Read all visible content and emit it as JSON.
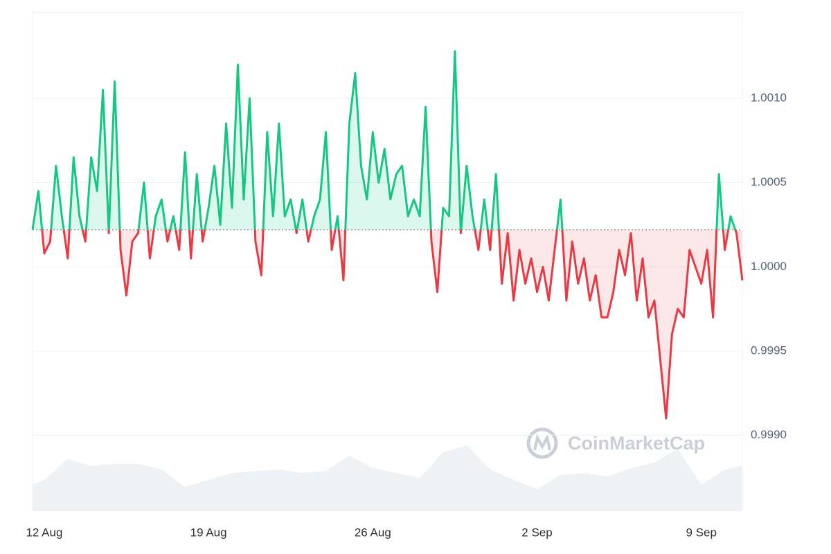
{
  "chart_data": {
    "type": "line",
    "watermark": "CoinMarketCap",
    "baseline": 1.00022,
    "up_color": "#16c784",
    "down_color": "#ea3943",
    "x": [
      -0.5,
      -0.25,
      0,
      0.25,
      0.5,
      0.75,
      1,
      1.25,
      1.5,
      1.75,
      2,
      2.25,
      2.5,
      2.75,
      3,
      3.25,
      3.5,
      3.75,
      4,
      4.25,
      4.5,
      4.75,
      5,
      5.25,
      5.5,
      5.75,
      6,
      6.25,
      6.5,
      6.75,
      7,
      7.25,
      7.5,
      7.75,
      8,
      8.25,
      8.5,
      8.75,
      9,
      9.25,
      9.5,
      9.75,
      10,
      10.25,
      10.5,
      10.75,
      11,
      11.25,
      11.5,
      11.75,
      12,
      12.25,
      12.5,
      12.75,
      13,
      13.25,
      13.5,
      13.75,
      14,
      14.25,
      14.5,
      14.75,
      15,
      15.25,
      15.5,
      15.75,
      16,
      16.25,
      16.5,
      16.75,
      17,
      17.25,
      17.5,
      17.75,
      18,
      18.25,
      18.5,
      18.75,
      19,
      19.25,
      19.5,
      19.75,
      20,
      20.25,
      20.5,
      20.75,
      21,
      21.25,
      21.5,
      21.75,
      22,
      22.25,
      22.5,
      22.75,
      23,
      23.25,
      23.5,
      23.75,
      24,
      24.25,
      24.5,
      24.75,
      25,
      25.25,
      25.5,
      25.75,
      26,
      26.25,
      26.5,
      26.75,
      27,
      27.25,
      27.5,
      27.75,
      28,
      28.25,
      28.5,
      28.75,
      29,
      29.25,
      29.5,
      29.75
    ],
    "values": [
      1.00022,
      1.00045,
      1.00008,
      1.00015,
      1.0006,
      1.0003,
      1.00005,
      1.00065,
      1.0003,
      1.00015,
      1.00065,
      1.00045,
      1.00105,
      1.0002,
      1.0011,
      1.0001,
      0.99983,
      1.00015,
      1.0002,
      1.0005,
      1.00005,
      1.0003,
      1.0004,
      1.00015,
      1.0003,
      1.0001,
      1.00068,
      1.00005,
      1.00055,
      1.00015,
      1.00035,
      1.0006,
      1.00025,
      1.00085,
      1.00035,
      1.0012,
      1.0004,
      1.001,
      1.00015,
      0.99995,
      1.0008,
      1.0003,
      1.00085,
      1.0003,
      1.0004,
      1.0002,
      1.0004,
      1.00015,
      1.0003,
      1.0004,
      1.0008,
      1.0001,
      1.0003,
      0.99992,
      1.00085,
      1.00115,
      1.0006,
      1.0004,
      1.0008,
      1.0005,
      1.0007,
      1.0004,
      1.00055,
      1.0006,
      1.0003,
      1.0004,
      1.0003,
      1.00095,
      1.00015,
      0.99985,
      1.00035,
      1.0003,
      1.00128,
      1.0002,
      1.0006,
      1.0003,
      1.0001,
      1.0004,
      1.0001,
      1.00055,
      0.9999,
      1.0002,
      0.9998,
      1.0001,
      0.9999,
      1.00005,
      0.99985,
      1.0,
      0.9998,
      1.0001,
      1.0004,
      0.9998,
      1.00015,
      0.9999,
      1.00005,
      0.9998,
      0.99995,
      0.9997,
      0.9997,
      0.99985,
      1.0001,
      0.99995,
      1.0002,
      0.9998,
      1.00005,
      0.9997,
      0.9998,
      0.99945,
      0.9991,
      0.9996,
      0.99975,
      0.9997,
      1.0001,
      1.0,
      0.9999,
      1.0001,
      0.9997,
      1.00055,
      1.0001,
      1.0003,
      1.0002,
      0.99992
    ],
    "volume": {
      "color": "#eff2f5",
      "x": [
        -0.5,
        0,
        1,
        2,
        3,
        4,
        5,
        6,
        7,
        8,
        9,
        10,
        11,
        12,
        13,
        14,
        15,
        16,
        17,
        18,
        19,
        20,
        21,
        22,
        23,
        24,
        25,
        26,
        27,
        28,
        29,
        29.75
      ],
      "values": [
        38,
        45,
        75,
        65,
        68,
        68,
        60,
        35,
        45,
        55,
        58,
        60,
        55,
        58,
        80,
        62,
        55,
        48,
        85,
        95,
        60,
        45,
        32,
        52,
        55,
        50,
        62,
        70,
        90,
        38,
        60,
        65
      ],
      "vlim": [
        0,
        100
      ]
    },
    "xlim": [
      -0.5,
      29.75
    ],
    "ylim": [
      0.99855,
      1.00151
    ],
    "xticks": [
      {
        "value": 0,
        "label": "12 Aug"
      },
      {
        "value": 7,
        "label": "19 Aug"
      },
      {
        "value": 14,
        "label": "26 Aug"
      },
      {
        "value": 21,
        "label": "2 Sep"
      },
      {
        "value": 28,
        "label": "9 Sep"
      }
    ],
    "yticks": [
      {
        "value": 0.999,
        "label": "0.9990"
      },
      {
        "value": 0.9995,
        "label": "0.9995"
      },
      {
        "value": 1.0,
        "label": "1.0000"
      },
      {
        "value": 1.0005,
        "label": "1.0005"
      },
      {
        "value": 1.001,
        "label": "1.0010"
      }
    ],
    "grid": true
  }
}
